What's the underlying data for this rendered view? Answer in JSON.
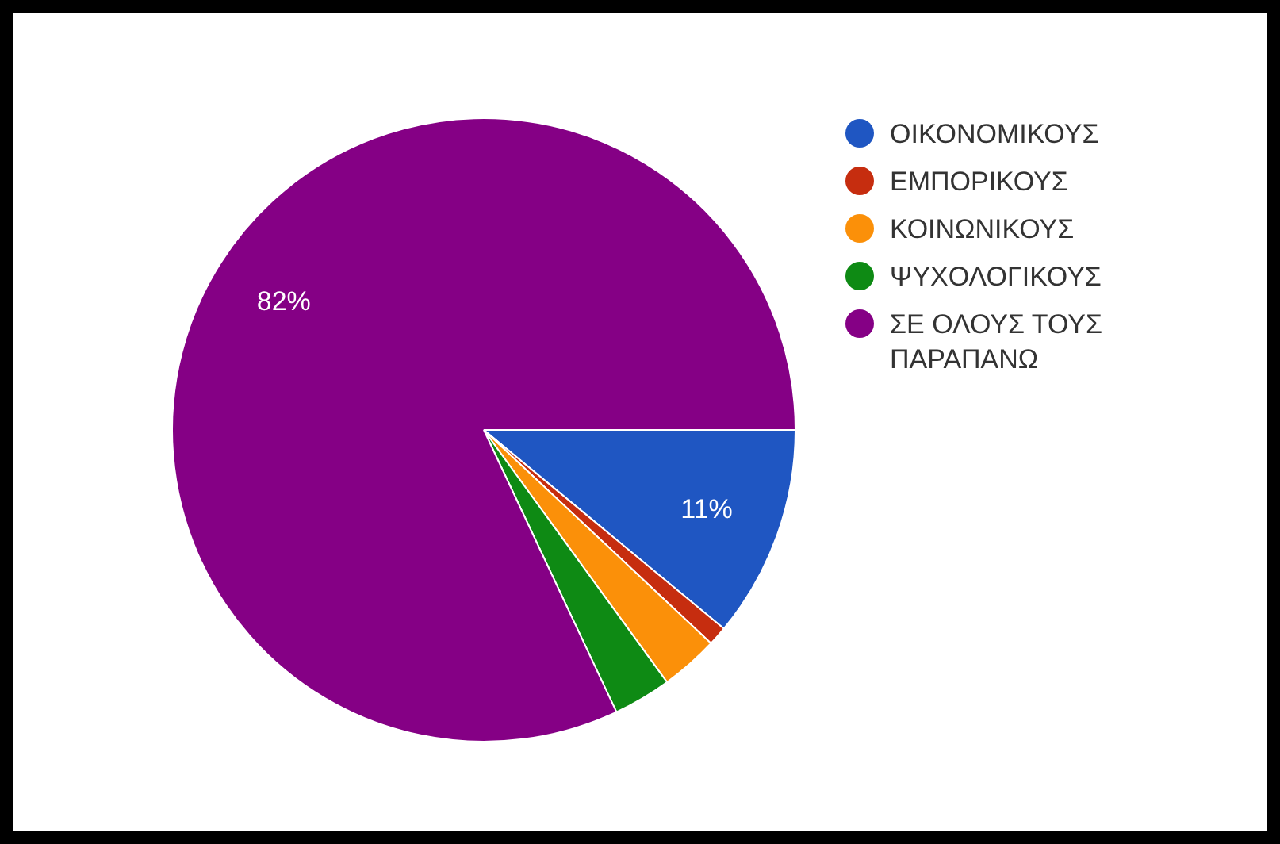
{
  "chart_data": {
    "type": "pie",
    "categories": [
      "ΟΙΚΟΝΟΜΙΚΟΥΣ",
      "ΕΜΠΟΡΙΚΟΥΣ",
      "ΚΟΙΝΩΝΙΚΟΥΣ",
      "ΨΥΧΟΛΟΓΙΚΟΥΣ",
      "ΣΕ ΟΛΟΥΣ ΤΟΥΣ ΠΑΡΑΠΑΝΩ"
    ],
    "values": [
      11,
      1,
      3,
      3,
      82
    ],
    "colors": [
      "#1f56c2",
      "#c62d0f",
      "#fb9009",
      "#0e8a14",
      "#850085"
    ],
    "value_labels": [
      "11%",
      null,
      null,
      null,
      "82%"
    ],
    "legend": "top right"
  }
}
